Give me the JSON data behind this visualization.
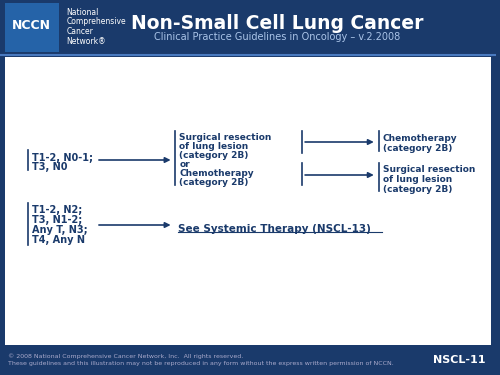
{
  "header_bg": "#1a3a6b",
  "body_bg": "#ffffff",
  "footer_bg": "#1a3a6b",
  "border_color": "#4a7abf",
  "nccn_box_color": "#2563a8",
  "title_text": "Non-Small Cell Lung Cancer",
  "subtitle_text": "Clinical Practice Guidelines in Oncology – v.2.2008",
  "nccn_label": "NCCN",
  "org_lines": [
    "National",
    "Comprehensive",
    "Cancer",
    "Network®"
  ],
  "footer_copyright": "© 2008 National Comprehensive Cancer Network, Inc.  All rights reserved.",
  "footer_note": "These guidelines and this illustration may not be reproduced in any form without the express written permission of NCCN.",
  "footer_page": "NSCL-11",
  "diagram_color": "#1a3a6b",
  "arrow_color": "#1a3a6b",
  "box1_lines": [
    "T1-2, N0-1;",
    "T3, N0"
  ],
  "box2_lines": [
    "Surgical resection",
    "of lung lesion",
    "(category 2B)",
    "or",
    "Chemotherapy",
    "(category 2B)"
  ],
  "box3a_lines": [
    "Chemotherapy",
    "(category 2B)"
  ],
  "box3b_lines": [
    "Surgical resection",
    "of lung lesion",
    "(category 2B)"
  ],
  "box4_lines": [
    "T1-2, N2;",
    "T3, N1-2;",
    "Any T, N3;",
    "T4, Any N"
  ],
  "box5_text": "See Systemic Therapy (NSCL-13)"
}
